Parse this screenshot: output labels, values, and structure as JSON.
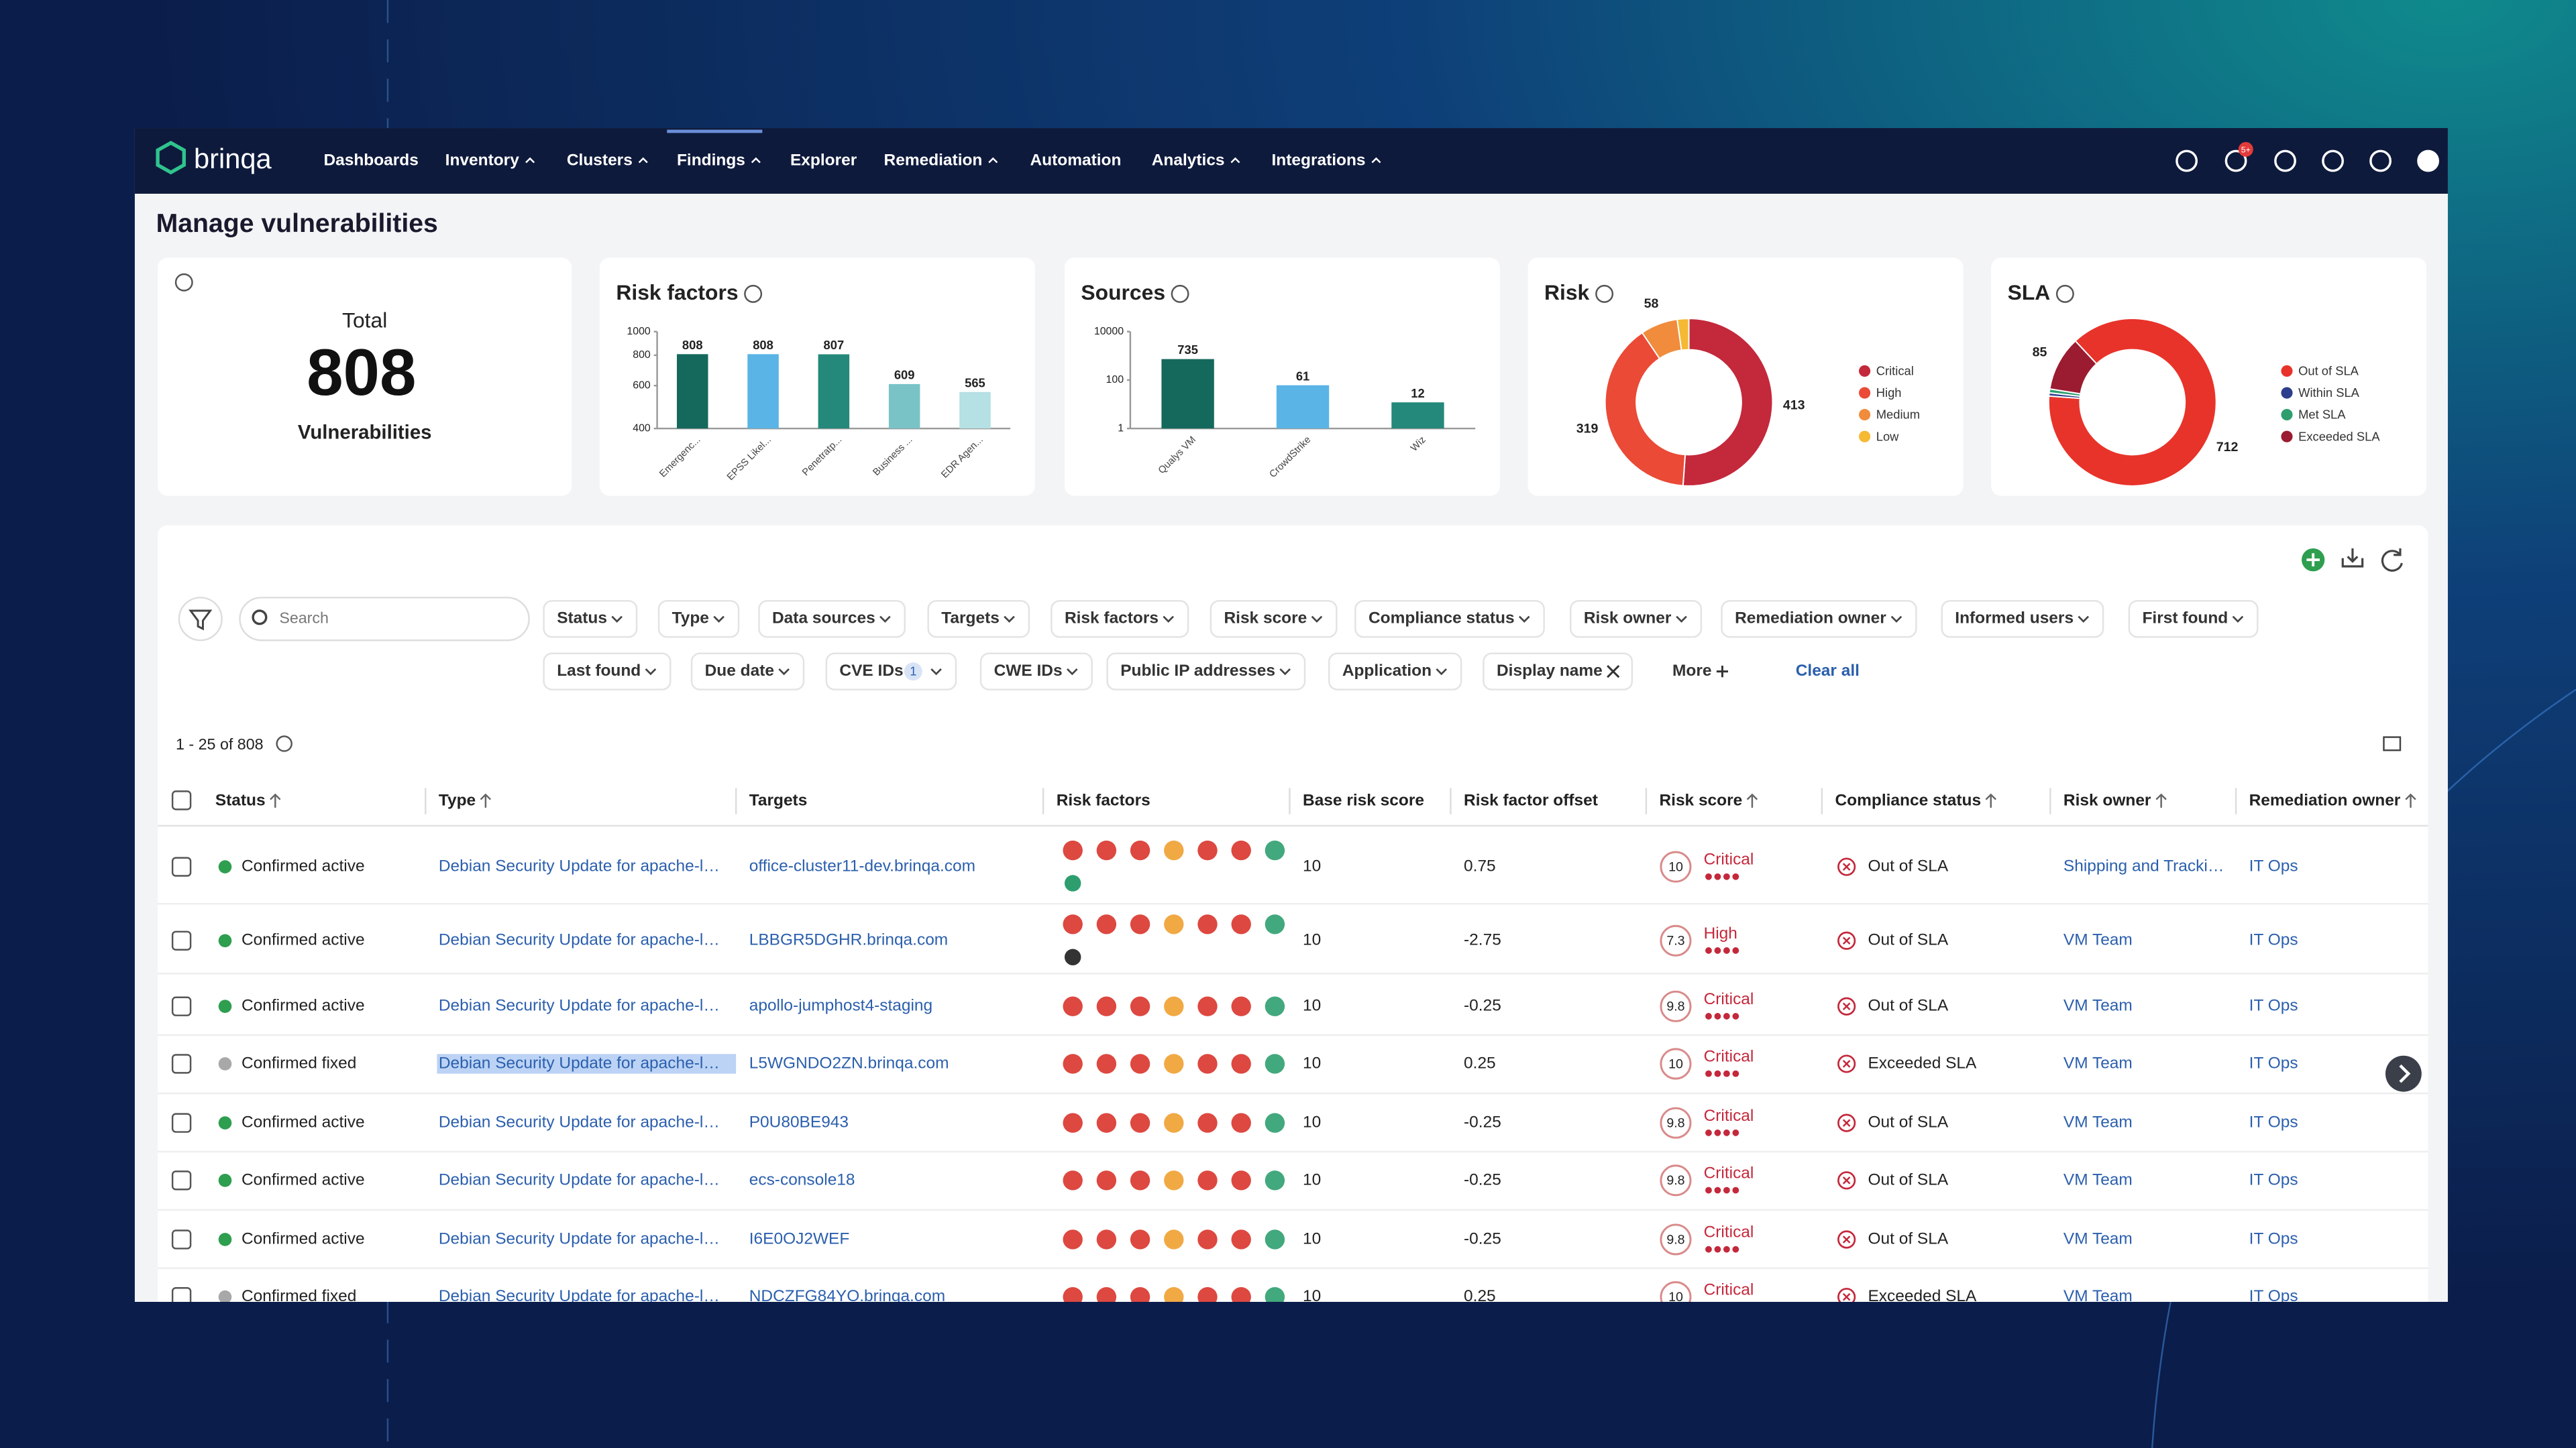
{
  "nav": {
    "logo": "brinqa",
    "items": [
      "Dashboards",
      "Inventory",
      "Clusters",
      "Findings",
      "Explorer",
      "Remediation",
      "Automation",
      "Analytics",
      "Integrations"
    ],
    "notification_badge": "5+"
  },
  "page_title": "Manage vulnerabilities",
  "total_card": {
    "label": "Total",
    "value": "808",
    "caption": "Vulnerabilities"
  },
  "risk_factors_chart": {
    "type": "bar",
    "title": "Risk factors",
    "categories": [
      "Emergenc...",
      "EPSS Likel...",
      "Penetratp...",
      "Business ...",
      "EDR Agen..."
    ],
    "values": [
      808,
      808,
      807,
      609,
      565
    ],
    "colors": [
      "#14695c",
      "#5ab4e6",
      "#24897a",
      "#79c3c7",
      "#b5e0e4"
    ],
    "ylim": [
      400,
      1000
    ],
    "yticks": [
      1000,
      800,
      600,
      400
    ],
    "log_scale": true
  },
  "sources_chart": {
    "type": "bar",
    "title": "Sources",
    "categories": [
      "Qualys VM",
      "CrowdStrike",
      "Wiz"
    ],
    "values": [
      735,
      61,
      12
    ],
    "colors": [
      "#14695c",
      "#5ab4e6",
      "#24897a"
    ],
    "ylim": [
      1,
      10000
    ],
    "yticks": [
      10000,
      100,
      1
    ],
    "log_scale": true
  },
  "risk_chart": {
    "type": "donut",
    "title": "Risk",
    "categories": [
      "Critical",
      "High",
      "Medium",
      "Low"
    ],
    "values": [
      413,
      319,
      58,
      18
    ],
    "value_labels": [
      "413",
      "319",
      "58",
      null
    ],
    "colors": [
      "#c4283b",
      "#ea4a36",
      "#f08c3c",
      "#f5b933"
    ]
  },
  "sla_chart": {
    "type": "donut",
    "title": "SLA",
    "categories": [
      "Out of SLA",
      "Within SLA",
      "Met SLA",
      "Exceeded SLA"
    ],
    "values": [
      712,
      5,
      6,
      85
    ],
    "value_labels": [
      "712",
      null,
      null,
      "85"
    ],
    "colors": [
      "#e8332a",
      "#2c3e8c",
      "#2e9e6f",
      "#9b1b30"
    ]
  },
  "filters": {
    "search_placeholder": "Search",
    "row1": [
      "Status",
      "Type",
      "Data sources",
      "Targets",
      "Risk factors",
      "Risk score",
      "Compliance status",
      "Risk owner",
      "Remediation owner",
      "Informed users",
      "First found"
    ],
    "row2": [
      "Last found",
      "Due date",
      "CVE IDs",
      "CWE IDs",
      "Public IP addresses",
      "Application",
      "Display name",
      "More"
    ],
    "cve_badge": "1",
    "clear_all": "Clear all"
  },
  "results_count": "1 - 25 of 808",
  "table": {
    "headers": [
      "Status",
      "Type",
      "Targets",
      "Risk factors",
      "Base risk score",
      "Risk factor offset",
      "Risk score",
      "Compliance status",
      "Risk owner",
      "Remediation owner"
    ],
    "status_dot_colors": [
      "#2e9e4f",
      "#2e9e4f",
      "#2e9e4f",
      "#a8a8a8",
      "#2e9e4f",
      "#2e9e4f",
      "#2e9e4f",
      "#a8a8a8"
    ],
    "rows": [
      [
        "Confirmed active",
        "Debian Security Update for apache-l…",
        "office-cluster11-dev.brinqa.com",
        "10",
        "0.75",
        "10",
        "Critical",
        "Out of SLA",
        "Shipping and Tracki…",
        "IT Ops"
      ],
      [
        "Confirmed active",
        "Debian Security Update for apache-l…",
        "LBBGR5DGHR.brinqa.com",
        "10",
        "-2.75",
        "7.3",
        "High",
        "Out of SLA",
        "VM Team",
        "IT Ops"
      ],
      [
        "Confirmed active",
        "Debian Security Update for apache-l…",
        "apollo-jumphost4-staging",
        "10",
        "-0.25",
        "9.8",
        "Critical",
        "Out of SLA",
        "VM Team",
        "IT Ops"
      ],
      [
        "Confirmed fixed",
        "Debian Security Update for apache-l…",
        "L5WGNDO2ZN.brinqa.com",
        "10",
        "0.25",
        "10",
        "Critical",
        "Exceeded SLA",
        "VM Team",
        "IT Ops"
      ],
      [
        "Confirmed active",
        "Debian Security Update for apache-l…",
        "P0U80BE943",
        "10",
        "-0.25",
        "9.8",
        "Critical",
        "Out of SLA",
        "VM Team",
        "IT Ops"
      ],
      [
        "Confirmed active",
        "Debian Security Update for apache-l…",
        "ecs-console18",
        "10",
        "-0.25",
        "9.8",
        "Critical",
        "Out of SLA",
        "VM Team",
        "IT Ops"
      ],
      [
        "Confirmed active",
        "Debian Security Update for apache-l…",
        "I6E0OJ2WEF",
        "10",
        "-0.25",
        "9.8",
        "Critical",
        "Out of SLA",
        "VM Team",
        "IT Ops"
      ],
      [
        "Confirmed fixed",
        "Debian Security Update for apache-l…",
        "NDCZFG84YO.brinqa.com",
        "10",
        "0.25",
        "10",
        "Critical",
        "Exceeded SLA",
        "VM Team",
        "IT Ops"
      ]
    ]
  }
}
